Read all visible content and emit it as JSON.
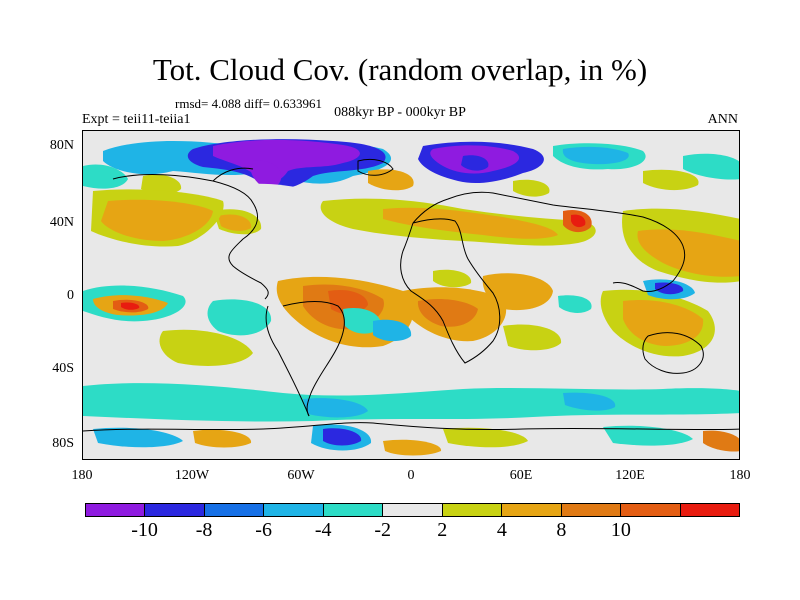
{
  "title": "Tot. Cloud Cov. (random overlap, in %)",
  "stats": "rmsd= 4.088 diff= 0.633961",
  "experiment": "Expt = teii11-teiia1",
  "period": "088kyr BP - 000kyr BP",
  "season": "ANN",
  "y_ticks": [
    "80N",
    "40N",
    "0",
    "40S",
    "80S"
  ],
  "x_ticks": [
    "180",
    "120W",
    "60W",
    "0",
    "60E",
    "120E",
    "180"
  ],
  "colorbar": {
    "colors": [
      "#8f1be0",
      "#2b28e0",
      "#1670e6",
      "#1fb4e6",
      "#2ddcc6",
      "#e8e8e8",
      "#c8d213",
      "#e6a514",
      "#e07a14",
      "#e35d13",
      "#e81c10"
    ],
    "labels": [
      "-10",
      "-8",
      "-6",
      "-4",
      "-2",
      "2",
      "4",
      "8",
      "10"
    ]
  }
}
